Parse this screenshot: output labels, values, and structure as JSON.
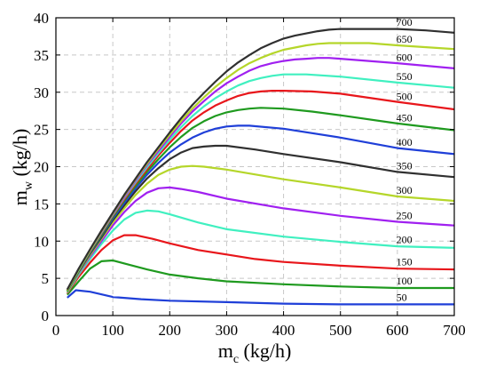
{
  "chart_data": {
    "type": "line",
    "xlabel": "m",
    "xlabel_sub": "c",
    "xlabel_unit": " (kg/h)",
    "ylabel": "m",
    "ylabel_sub": "w",
    "ylabel_unit": " (kg/h)",
    "xlim": [
      0,
      700
    ],
    "ylim": [
      0,
      40
    ],
    "xticks": [
      0,
      100,
      200,
      300,
      400,
      500,
      600,
      700
    ],
    "yticks": [
      0,
      5,
      10,
      15,
      20,
      25,
      30,
      35,
      40
    ],
    "grid": true,
    "series": [
      {
        "name": "50",
        "color": "#1f3fd8",
        "x": [
          20,
          35,
          60,
          100,
          150,
          200,
          300,
          400,
          500,
          600,
          700
        ],
        "y": [
          2.4,
          3.4,
          3.2,
          2.5,
          2.2,
          2.0,
          1.8,
          1.6,
          1.5,
          1.5,
          1.5
        ]
      },
      {
        "name": "100",
        "color": "#1f9a1f",
        "x": [
          20,
          40,
          60,
          80,
          100,
          130,
          160,
          200,
          250,
          300,
          400,
          500,
          600,
          700
        ],
        "y": [
          2.8,
          4.6,
          6.3,
          7.3,
          7.4,
          6.8,
          6.2,
          5.5,
          5.0,
          4.6,
          4.2,
          3.9,
          3.7,
          3.7
        ]
      },
      {
        "name": "150",
        "color": "#e8161b",
        "x": [
          20,
          40,
          60,
          80,
          100,
          120,
          140,
          170,
          200,
          250,
          300,
          350,
          400,
          500,
          600,
          700
        ],
        "y": [
          3.0,
          5.2,
          7.1,
          8.8,
          10.1,
          10.8,
          10.8,
          10.3,
          9.7,
          8.8,
          8.2,
          7.6,
          7.2,
          6.7,
          6.3,
          6.2
        ]
      },
      {
        "name": "200",
        "color": "#40f0c0",
        "x": [
          20,
          40,
          60,
          80,
          100,
          120,
          140,
          160,
          180,
          200,
          250,
          300,
          400,
          500,
          600,
          700
        ],
        "y": [
          3.1,
          5.5,
          7.6,
          9.6,
          11.4,
          12.9,
          13.8,
          14.1,
          14.0,
          13.6,
          12.5,
          11.6,
          10.6,
          9.9,
          9.3,
          9.1
        ]
      },
      {
        "name": "250",
        "color": "#a020f0",
        "x": [
          20,
          40,
          60,
          80,
          100,
          120,
          140,
          160,
          180,
          200,
          220,
          250,
          300,
          400,
          500,
          600,
          700
        ],
        "y": [
          3.2,
          5.7,
          7.9,
          10.0,
          12.1,
          13.9,
          15.4,
          16.5,
          17.1,
          17.2,
          17.0,
          16.6,
          15.7,
          14.4,
          13.4,
          12.6,
          12.1
        ]
      },
      {
        "name": "300",
        "color": "#b5d62a",
        "x": [
          20,
          40,
          60,
          80,
          100,
          120,
          140,
          160,
          180,
          200,
          220,
          240,
          260,
          300,
          400,
          500,
          600,
          700
        ],
        "y": [
          3.2,
          5.8,
          8.1,
          10.3,
          12.5,
          14.4,
          16.2,
          17.7,
          18.9,
          19.6,
          20.0,
          20.1,
          20.0,
          19.6,
          18.3,
          17.2,
          16.0,
          15.4
        ]
      },
      {
        "name": "350",
        "color": "#303030",
        "x": [
          20,
          40,
          60,
          80,
          100,
          120,
          140,
          160,
          180,
          200,
          220,
          240,
          260,
          280,
          300,
          350,
          400,
          500,
          600,
          700
        ],
        "y": [
          3.3,
          5.9,
          8.3,
          10.5,
          12.8,
          14.8,
          16.7,
          18.4,
          19.8,
          21.0,
          21.9,
          22.5,
          22.7,
          22.8,
          22.8,
          22.3,
          21.7,
          20.6,
          19.3,
          18.6
        ]
      },
      {
        "name": "400",
        "color": "#1f3fd8",
        "x": [
          20,
          40,
          60,
          80,
          100,
          120,
          140,
          160,
          180,
          200,
          220,
          240,
          260,
          280,
          300,
          320,
          340,
          400,
          500,
          600,
          700
        ],
        "y": [
          3.3,
          6.0,
          8.4,
          10.7,
          13.0,
          15.1,
          17.1,
          18.9,
          20.5,
          21.9,
          23.0,
          23.9,
          24.6,
          25.1,
          25.4,
          25.5,
          25.5,
          25.1,
          23.9,
          22.5,
          21.7
        ]
      },
      {
        "name": "450",
        "color": "#1f9a1f",
        "x": [
          20,
          40,
          60,
          80,
          100,
          120,
          140,
          160,
          180,
          200,
          220,
          240,
          260,
          280,
          300,
          320,
          340,
          360,
          400,
          450,
          500,
          600,
          700
        ],
        "y": [
          3.3,
          6.0,
          8.5,
          10.8,
          13.2,
          15.4,
          17.4,
          19.3,
          21.0,
          22.6,
          24.0,
          25.2,
          26.1,
          26.8,
          27.3,
          27.6,
          27.8,
          27.9,
          27.8,
          27.4,
          26.9,
          25.8,
          24.9
        ]
      },
      {
        "name": "500",
        "color": "#e8161b",
        "x": [
          20,
          40,
          60,
          80,
          100,
          120,
          140,
          160,
          180,
          200,
          220,
          240,
          260,
          280,
          300,
          320,
          340,
          360,
          380,
          400,
          450,
          500,
          600,
          700
        ],
        "y": [
          3.4,
          6.1,
          8.6,
          11.0,
          13.4,
          15.6,
          17.7,
          19.6,
          21.5,
          23.2,
          24.8,
          26.2,
          27.3,
          28.2,
          28.9,
          29.5,
          29.9,
          30.1,
          30.2,
          30.2,
          30.1,
          29.8,
          28.7,
          27.7
        ]
      },
      {
        "name": "550",
        "color": "#40f0c0",
        "x": [
          20,
          40,
          60,
          80,
          100,
          120,
          140,
          160,
          180,
          200,
          220,
          240,
          260,
          280,
          300,
          320,
          340,
          360,
          380,
          400,
          420,
          440,
          500,
          600,
          700
        ],
        "y": [
          3.4,
          6.1,
          8.7,
          11.1,
          13.5,
          15.8,
          17.9,
          19.9,
          21.8,
          23.6,
          25.3,
          26.8,
          28.1,
          29.2,
          30.1,
          30.9,
          31.5,
          31.9,
          32.2,
          32.4,
          32.4,
          32.4,
          32.1,
          31.3,
          30.6
        ]
      },
      {
        "name": "600",
        "color": "#a020f0",
        "x": [
          20,
          40,
          60,
          80,
          100,
          120,
          140,
          160,
          180,
          200,
          220,
          240,
          260,
          280,
          300,
          320,
          340,
          360,
          380,
          400,
          420,
          440,
          460,
          480,
          500,
          600,
          700
        ],
        "y": [
          3.4,
          6.2,
          8.8,
          11.2,
          13.6,
          15.9,
          18.1,
          20.2,
          22.1,
          24.0,
          25.8,
          27.4,
          28.8,
          30.1,
          31.2,
          32.1,
          32.9,
          33.5,
          33.9,
          34.2,
          34.4,
          34.5,
          34.6,
          34.6,
          34.5,
          33.9,
          33.2
        ]
      },
      {
        "name": "650",
        "color": "#b5d62a",
        "x": [
          20,
          40,
          60,
          80,
          100,
          120,
          140,
          160,
          180,
          200,
          220,
          240,
          260,
          280,
          300,
          320,
          340,
          360,
          380,
          400,
          420,
          440,
          460,
          480,
          500,
          550,
          600,
          700
        ],
        "y": [
          3.4,
          6.2,
          8.8,
          11.3,
          13.7,
          16.1,
          18.3,
          20.4,
          22.4,
          24.3,
          26.1,
          27.8,
          29.3,
          30.7,
          31.9,
          33.0,
          33.9,
          34.6,
          35.2,
          35.7,
          36.0,
          36.3,
          36.5,
          36.6,
          36.6,
          36.6,
          36.3,
          35.8
        ]
      },
      {
        "name": "700",
        "color": "#303030",
        "x": [
          20,
          40,
          60,
          80,
          100,
          120,
          140,
          160,
          180,
          200,
          220,
          240,
          260,
          280,
          300,
          320,
          340,
          360,
          380,
          400,
          420,
          440,
          460,
          480,
          500,
          520,
          560,
          600,
          650,
          700
        ],
        "y": [
          3.5,
          6.3,
          8.9,
          11.4,
          13.8,
          16.2,
          18.4,
          20.6,
          22.6,
          24.6,
          26.5,
          28.3,
          29.9,
          31.4,
          32.8,
          34.0,
          35.0,
          35.9,
          36.6,
          37.2,
          37.6,
          37.9,
          38.2,
          38.4,
          38.5,
          38.5,
          38.5,
          38.5,
          38.3,
          38.0
        ]
      }
    ]
  }
}
